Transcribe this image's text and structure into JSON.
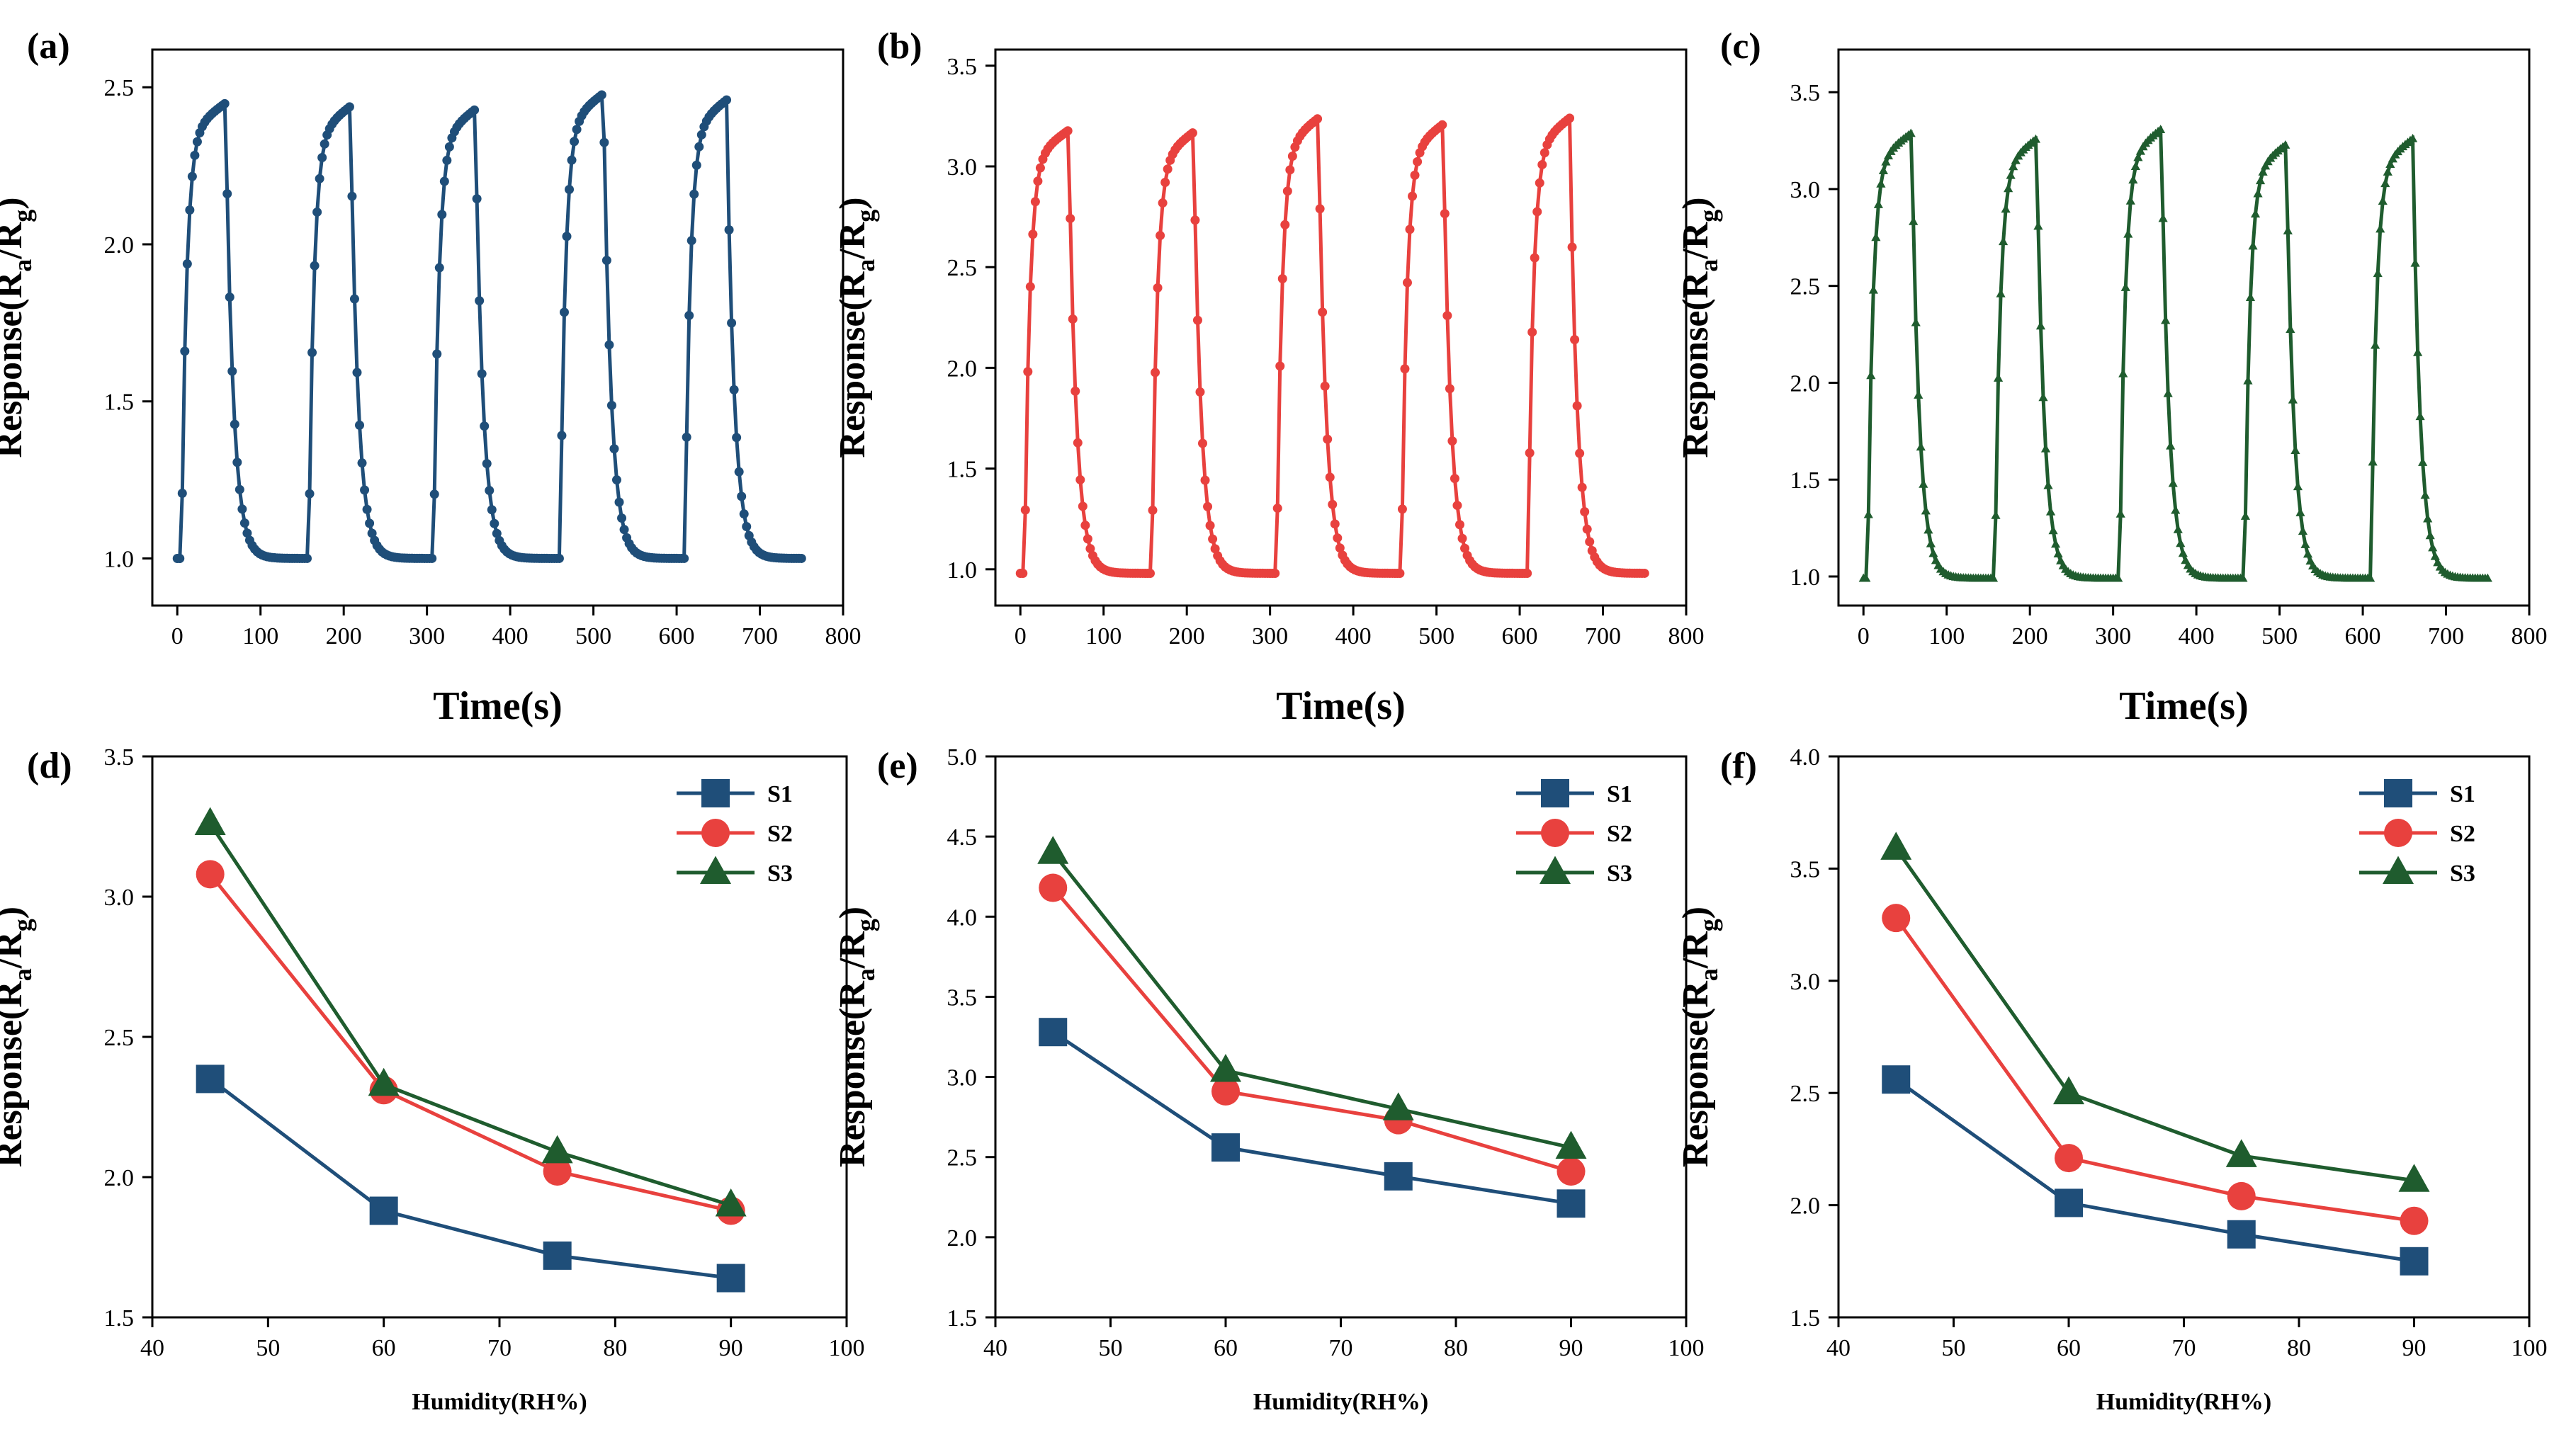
{
  "colors": {
    "S1": "#1f4e79",
    "S2": "#e8413e",
    "S3": "#1f5c2e"
  },
  "chart_data": [
    {
      "id": "a",
      "label": "(a)",
      "type": "line",
      "marker": "circle",
      "color": "#1f4e79",
      "xlabel": "Time(s)",
      "ylabel": "Response(R",
      "ylabel_sub_a": "a",
      "ylabel_mid": "/R",
      "ylabel_sub_g": "g",
      "ylabel_end": ")",
      "xlim": [
        -30,
        800
      ],
      "ylim": [
        0.85,
        2.62
      ],
      "xticks": [
        0,
        100,
        200,
        300,
        400,
        500,
        600,
        700,
        800
      ],
      "xtick_labels": [
        "0",
        "100",
        "200",
        "300",
        "400",
        "500",
        "600",
        "700",
        "800"
      ],
      "yticks": [
        1.0,
        1.5,
        2.0,
        2.5
      ],
      "ytick_labels": [
        "1.0",
        "1.5",
        "2.0",
        "2.5"
      ],
      "baseline": 1.0,
      "cycles": [
        {
          "on": 5,
          "off": 58,
          "peak": 2.45
        },
        {
          "on": 158,
          "off": 208,
          "peak": 2.44
        },
        {
          "on": 308,
          "off": 358,
          "peak": 2.43
        },
        {
          "on": 460,
          "off": 512,
          "peak": 2.48
        },
        {
          "on": 610,
          "off": 660,
          "peak": 2.46
        }
      ],
      "t_end": 750
    },
    {
      "id": "b",
      "label": "(b)",
      "type": "line",
      "marker": "circle",
      "color": "#e8413e",
      "xlabel": "Time(s)",
      "ylabel": "Response(R",
      "ylabel_sub_a": "a",
      "ylabel_mid": "/R",
      "ylabel_sub_g": "g",
      "ylabel_end": ")",
      "xlim": [
        -30,
        800
      ],
      "ylim": [
        0.82,
        3.58
      ],
      "xticks": [
        0,
        100,
        200,
        300,
        400,
        500,
        600,
        700,
        800
      ],
      "xtick_labels": [
        "0",
        "100",
        "200",
        "300",
        "400",
        "500",
        "600",
        "700",
        "800"
      ],
      "yticks": [
        1.0,
        1.5,
        2.0,
        2.5,
        3.0,
        3.5
      ],
      "ytick_labels": [
        "1.0",
        "1.5",
        "2.0",
        "2.5",
        "3.0",
        "3.5"
      ],
      "baseline": 0.98,
      "cycles": [
        {
          "on": 5,
          "off": 58,
          "peak": 3.18
        },
        {
          "on": 158,
          "off": 208,
          "peak": 3.17
        },
        {
          "on": 308,
          "off": 358,
          "peak": 3.24
        },
        {
          "on": 458,
          "off": 508,
          "peak": 3.21
        },
        {
          "on": 610,
          "off": 660,
          "peak": 3.24
        }
      ],
      "t_end": 750
    },
    {
      "id": "c",
      "label": "(c)",
      "type": "line",
      "marker": "triangle",
      "color": "#1f5c2e",
      "xlabel": "Time(s)",
      "ylabel": "Response(R",
      "ylabel_sub_a": "a",
      "ylabel_mid": "/R",
      "ylabel_sub_g": "g",
      "ylabel_end": ")",
      "xlim": [
        -30,
        800
      ],
      "ylim": [
        0.85,
        3.72
      ],
      "xticks": [
        0,
        100,
        200,
        300,
        400,
        500,
        600,
        700,
        800
      ],
      "xtick_labels": [
        "0",
        "100",
        "200",
        "300",
        "400",
        "500",
        "600",
        "700",
        "800"
      ],
      "yticks": [
        1.0,
        1.5,
        2.0,
        2.5,
        3.0,
        3.5
      ],
      "ytick_labels": [
        "1.0",
        "1.5",
        "2.0",
        "2.5",
        "3.0",
        "3.5"
      ],
      "baseline": 0.99,
      "cycles": [
        {
          "on": 5,
          "off": 58,
          "peak": 3.29
        },
        {
          "on": 158,
          "off": 208,
          "peak": 3.26
        },
        {
          "on": 308,
          "off": 358,
          "peak": 3.31
        },
        {
          "on": 458,
          "off": 508,
          "peak": 3.23
        },
        {
          "on": 610,
          "off": 660,
          "peak": 3.26
        }
      ],
      "t_end": 750
    },
    {
      "id": "d",
      "label": "(d)",
      "type": "line",
      "xlabel": "Humidity(RH%)",
      "ylabel": "Response(R",
      "ylabel_sub_a": "a",
      "ylabel_mid": "/R",
      "ylabel_sub_g": "g",
      "ylabel_end": ")",
      "xlim": [
        40,
        100
      ],
      "ylim": [
        1.5,
        3.5
      ],
      "xticks": [
        40,
        50,
        60,
        70,
        80,
        90,
        100
      ],
      "xtick_labels": [
        "40",
        "50",
        "60",
        "70",
        "80",
        "90",
        "100"
      ],
      "yticks": [
        1.5,
        2.0,
        2.5,
        3.0,
        3.5
      ],
      "ytick_labels": [
        "1.5",
        "2.0",
        "2.5",
        "3.0",
        "3.5"
      ],
      "x": [
        45,
        60,
        75,
        90
      ],
      "series": [
        {
          "name": "S1",
          "marker": "square",
          "color": "#1f4e79",
          "values": [
            2.35,
            1.88,
            1.72,
            1.64
          ]
        },
        {
          "name": "S2",
          "marker": "circle",
          "color": "#e8413e",
          "values": [
            3.08,
            2.31,
            2.02,
            1.88
          ]
        },
        {
          "name": "S3",
          "marker": "triangle",
          "color": "#1f5c2e",
          "values": [
            3.26,
            2.33,
            2.09,
            1.9
          ]
        }
      ],
      "legend": "top-right"
    },
    {
      "id": "e",
      "label": "(e)",
      "type": "line",
      "xlabel": "Humidity(RH%)",
      "ylabel": "Response(R",
      "ylabel_sub_a": "a",
      "ylabel_mid": "/R",
      "ylabel_sub_g": "g",
      "ylabel_end": ")",
      "xlim": [
        40,
        100
      ],
      "ylim": [
        1.5,
        5.0
      ],
      "xticks": [
        40,
        50,
        60,
        70,
        80,
        90,
        100
      ],
      "xtick_labels": [
        "40",
        "50",
        "60",
        "70",
        "80",
        "90",
        "100"
      ],
      "yticks": [
        1.5,
        2.0,
        2.5,
        3.0,
        3.5,
        4.0,
        4.5,
        5.0
      ],
      "ytick_labels": [
        "1.5",
        "2.0",
        "2.5",
        "3.0",
        "3.5",
        "4.0",
        "4.5",
        "5.0"
      ],
      "x": [
        45,
        60,
        75,
        90
      ],
      "series": [
        {
          "name": "S1",
          "marker": "square",
          "color": "#1f4e79",
          "values": [
            3.28,
            2.56,
            2.38,
            2.21
          ]
        },
        {
          "name": "S2",
          "marker": "circle",
          "color": "#e8413e",
          "values": [
            4.18,
            2.91,
            2.73,
            2.41
          ]
        },
        {
          "name": "S3",
          "marker": "triangle",
          "color": "#1f5c2e",
          "values": [
            4.4,
            3.04,
            2.8,
            2.56
          ]
        }
      ],
      "legend": "top-right"
    },
    {
      "id": "f",
      "label": "(f)",
      "type": "line",
      "xlabel": "Humidity(RH%)",
      "ylabel": "Response(R",
      "ylabel_sub_a": "a",
      "ylabel_mid": "/R",
      "ylabel_sub_g": "g",
      "ylabel_end": ")",
      "xlim": [
        40,
        100
      ],
      "ylim": [
        1.5,
        4.0
      ],
      "xticks": [
        40,
        50,
        60,
        70,
        80,
        90,
        100
      ],
      "xtick_labels": [
        "40",
        "50",
        "60",
        "70",
        "80",
        "90",
        "100"
      ],
      "yticks": [
        1.5,
        2.0,
        2.5,
        3.0,
        3.5,
        4.0
      ],
      "ytick_labels": [
        "1.5",
        "2.0",
        "2.5",
        "3.0",
        "3.5",
        "4.0"
      ],
      "x": [
        45,
        60,
        75,
        90
      ],
      "series": [
        {
          "name": "S1",
          "marker": "square",
          "color": "#1f4e79",
          "values": [
            2.56,
            2.01,
            1.87,
            1.75
          ]
        },
        {
          "name": "S2",
          "marker": "circle",
          "color": "#e8413e",
          "values": [
            3.28,
            2.21,
            2.04,
            1.93
          ]
        },
        {
          "name": "S3",
          "marker": "triangle",
          "color": "#1f5c2e",
          "values": [
            3.59,
            2.5,
            2.22,
            2.11
          ]
        }
      ],
      "legend": "top-right"
    }
  ]
}
